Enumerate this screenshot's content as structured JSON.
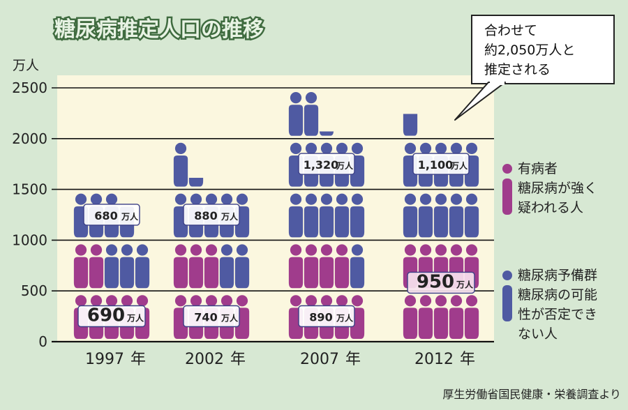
{
  "chart_data": {
    "type": "bar",
    "title": "糖尿病推定人口の推移",
    "ylabel": "万人",
    "ylim": [
      0,
      2500
    ],
    "yticks": [
      "0",
      "500",
      "1000",
      "1500",
      "2000",
      "2500"
    ],
    "categories": [
      "1997年",
      "2002年",
      "2007年",
      "2012年"
    ],
    "category_values": [
      "1997",
      "2002",
      "2007",
      "2012"
    ],
    "category_suffix": "年",
    "series": [
      {
        "name": "有病者 / 糖尿病が強く疑われる人",
        "color": "#a03c8c",
        "values": [
          690,
          740,
          890,
          950
        ],
        "labels": [
          "690",
          "740",
          "890",
          "950"
        ],
        "unit": "万人"
      },
      {
        "name": "糖尿病予備群 / 糖尿病の可能性が否定できない人",
        "color": "#4f5aa2",
        "values": [
          680,
          880,
          1320,
          1100
        ],
        "labels": [
          "680",
          "880",
          "1,320",
          "1,100"
        ],
        "unit": "万人"
      }
    ],
    "legend": [
      {
        "line1": "有病者",
        "line2": "糖尿病が強く",
        "line3": "疑われる人",
        "color": "#a03c8c"
      },
      {
        "line1": "糖尿病予備群",
        "line2": "糖尿病の可能",
        "line3": "性が否定でき",
        "line4": "ない人",
        "color": "#4f5aa2"
      }
    ],
    "legend_placement": "right",
    "grid": true,
    "annotation": {
      "line1": "合わせて",
      "line2": "約2,050万人と",
      "line3": "推定される"
    },
    "source": "厚生労働省国民健康・栄養調査より"
  }
}
